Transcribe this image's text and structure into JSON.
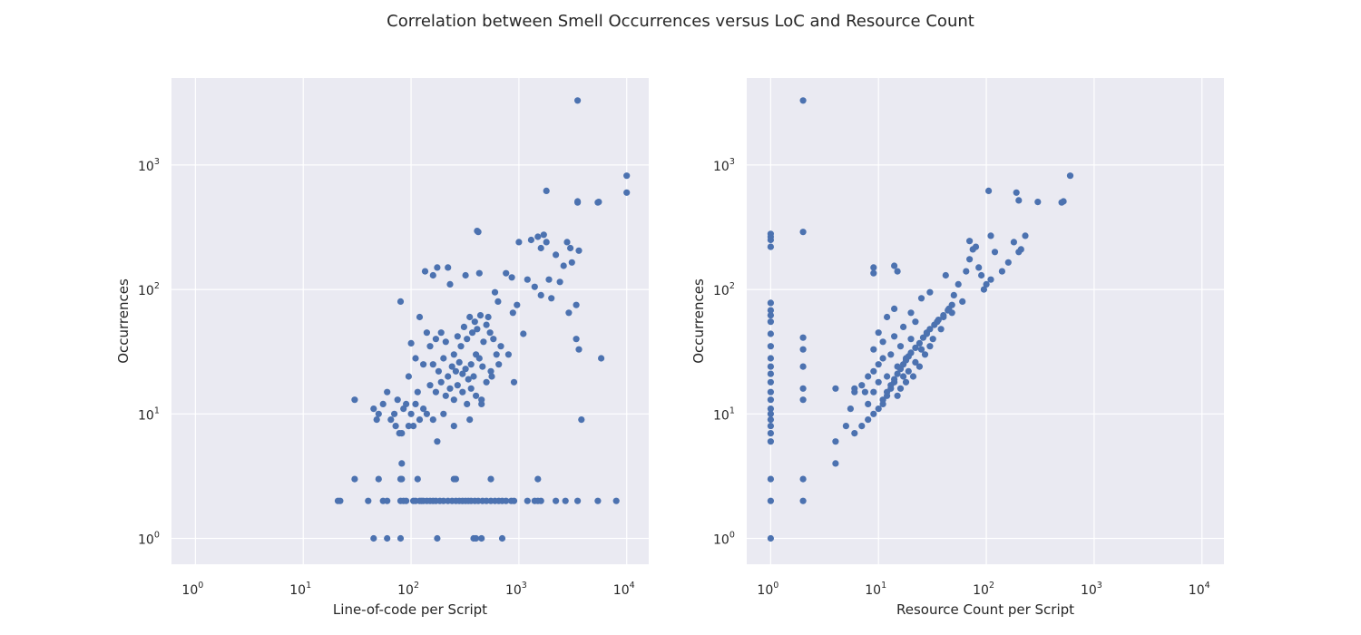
{
  "title": "Correlation between Smell Occurrences versus LoC and Resource Count",
  "colors": {
    "axes_background": "#eaeaf2",
    "grid": "#ffffff",
    "points": "#4c72b0"
  },
  "chart_data": [
    {
      "type": "scatter",
      "xlabel": "Line-of-code per Script",
      "ylabel": "Occurrences",
      "x_scale": "log",
      "y_scale": "log",
      "xlim": [
        0.6,
        16000
      ],
      "ylim": [
        0.62,
        5000
      ],
      "x_ticks": [
        {
          "value": 1,
          "base": "10",
          "exp": "0"
        },
        {
          "value": 10,
          "base": "10",
          "exp": "1"
        },
        {
          "value": 100,
          "base": "10",
          "exp": "2"
        },
        {
          "value": 1000,
          "base": "10",
          "exp": "3"
        },
        {
          "value": 10000,
          "base": "10",
          "exp": "4"
        }
      ],
      "y_ticks": [
        {
          "value": 1,
          "base": "10",
          "exp": "0"
        },
        {
          "value": 10,
          "base": "10",
          "exp": "1"
        },
        {
          "value": 100,
          "base": "10",
          "exp": "2"
        },
        {
          "value": 1000,
          "base": "10",
          "exp": "3"
        }
      ],
      "grid": true,
      "points": [
        [
          3500,
          3300
        ],
        [
          10000,
          820
        ],
        [
          10000,
          600
        ],
        [
          1800,
          620
        ],
        [
          3500,
          500
        ],
        [
          3500,
          510
        ],
        [
          5500,
          505
        ],
        [
          5400,
          500
        ],
        [
          420,
          290
        ],
        [
          410,
          295
        ],
        [
          1700,
          275
        ],
        [
          1500,
          265
        ],
        [
          1300,
          250
        ],
        [
          1800,
          240
        ],
        [
          2800,
          240
        ],
        [
          3000,
          215
        ],
        [
          3600,
          205
        ],
        [
          1000,
          240
        ],
        [
          1600,
          215
        ],
        [
          2200,
          190
        ],
        [
          2600,
          155
        ],
        [
          3100,
          165
        ],
        [
          1900,
          120
        ],
        [
          2400,
          115
        ],
        [
          135,
          140
        ],
        [
          175,
          150
        ],
        [
          220,
          150
        ],
        [
          160,
          130
        ],
        [
          230,
          110
        ],
        [
          320,
          130
        ],
        [
          430,
          135
        ],
        [
          760,
          135
        ],
        [
          860,
          125
        ],
        [
          1200,
          120
        ],
        [
          1400,
          105
        ],
        [
          1600,
          90
        ],
        [
          600,
          95
        ],
        [
          640,
          80
        ],
        [
          960,
          75
        ],
        [
          880,
          65
        ],
        [
          520,
          60
        ],
        [
          2000,
          85
        ],
        [
          2900,
          65
        ],
        [
          3400,
          75
        ],
        [
          3400,
          40
        ],
        [
          3600,
          33
        ],
        [
          5800,
          28
        ],
        [
          3800,
          9
        ],
        [
          1100,
          44
        ],
        [
          800,
          30
        ],
        [
          900,
          18
        ],
        [
          550,
          22
        ],
        [
          650,
          25
        ],
        [
          80,
          80
        ],
        [
          100,
          37
        ],
        [
          120,
          60
        ],
        [
          140,
          45
        ],
        [
          110,
          28
        ],
        [
          95,
          20
        ],
        [
          115,
          15
        ],
        [
          130,
          25
        ],
        [
          150,
          35
        ],
        [
          170,
          40
        ],
        [
          190,
          45
        ],
        [
          210,
          38
        ],
        [
          250,
          30
        ],
        [
          270,
          42
        ],
        [
          290,
          35
        ],
        [
          310,
          50
        ],
        [
          330,
          40
        ],
        [
          350,
          60
        ],
        [
          370,
          45
        ],
        [
          390,
          55
        ],
        [
          410,
          48
        ],
        [
          440,
          62
        ],
        [
          470,
          38
        ],
        [
          500,
          52
        ],
        [
          540,
          45
        ],
        [
          580,
          40
        ],
        [
          620,
          30
        ],
        [
          680,
          35
        ],
        [
          160,
          25
        ],
        [
          180,
          22
        ],
        [
          200,
          28
        ],
        [
          220,
          20
        ],
        [
          240,
          24
        ],
        [
          260,
          22
        ],
        [
          280,
          26
        ],
        [
          300,
          21
        ],
        [
          320,
          23
        ],
        [
          340,
          19
        ],
        [
          360,
          25
        ],
        [
          380,
          20
        ],
        [
          400,
          30
        ],
        [
          430,
          28
        ],
        [
          460,
          24
        ],
        [
          500,
          18
        ],
        [
          560,
          20
        ],
        [
          150,
          17
        ],
        [
          170,
          15
        ],
        [
          190,
          18
        ],
        [
          210,
          14
        ],
        [
          230,
          16
        ],
        [
          250,
          13
        ],
        [
          270,
          17
        ],
        [
          300,
          15
        ],
        [
          330,
          12
        ],
        [
          360,
          16
        ],
        [
          400,
          14
        ],
        [
          450,
          13
        ],
        [
          60,
          15
        ],
        [
          55,
          12
        ],
        [
          45,
          11
        ],
        [
          50,
          10
        ],
        [
          48,
          9
        ],
        [
          75,
          13
        ],
        [
          90,
          12
        ],
        [
          70,
          10
        ],
        [
          85,
          11
        ],
        [
          65,
          9
        ],
        [
          110,
          12
        ],
        [
          130,
          11
        ],
        [
          140,
          10
        ],
        [
          120,
          9
        ],
        [
          100,
          10
        ],
        [
          160,
          9
        ],
        [
          200,
          10
        ],
        [
          250,
          8
        ],
        [
          350,
          9
        ],
        [
          450,
          12
        ],
        [
          30,
          13
        ],
        [
          72,
          8
        ],
        [
          78,
          7
        ],
        [
          82,
          7
        ],
        [
          95,
          8
        ],
        [
          105,
          8
        ],
        [
          175,
          6
        ],
        [
          22,
          2
        ],
        [
          21,
          2
        ],
        [
          40,
          2
        ],
        [
          55,
          2
        ],
        [
          60,
          2
        ],
        [
          80,
          2
        ],
        [
          85,
          2
        ],
        [
          90,
          2
        ],
        [
          105,
          2
        ],
        [
          110,
          2
        ],
        [
          120,
          2
        ],
        [
          125,
          2
        ],
        [
          130,
          2
        ],
        [
          140,
          2
        ],
        [
          150,
          2
        ],
        [
          160,
          2
        ],
        [
          170,
          2
        ],
        [
          185,
          2
        ],
        [
          200,
          2
        ],
        [
          220,
          2
        ],
        [
          240,
          2
        ],
        [
          260,
          2
        ],
        [
          280,
          2
        ],
        [
          300,
          2
        ],
        [
          320,
          2
        ],
        [
          340,
          2
        ],
        [
          360,
          2
        ],
        [
          390,
          2
        ],
        [
          420,
          2
        ],
        [
          460,
          2
        ],
        [
          500,
          2
        ],
        [
          550,
          2
        ],
        [
          600,
          2
        ],
        [
          650,
          2
        ],
        [
          700,
          2
        ],
        [
          760,
          2
        ],
        [
          850,
          2
        ],
        [
          900,
          2
        ],
        [
          1200,
          2
        ],
        [
          1400,
          2
        ],
        [
          1500,
          2
        ],
        [
          1600,
          2
        ],
        [
          2200,
          2
        ],
        [
          2700,
          2
        ],
        [
          3500,
          2
        ],
        [
          5400,
          2
        ],
        [
          8000,
          2
        ],
        [
          30,
          3
        ],
        [
          50,
          3
        ],
        [
          80,
          3
        ],
        [
          82,
          3
        ],
        [
          115,
          3
        ],
        [
          250,
          3
        ],
        [
          260,
          3
        ],
        [
          550,
          3
        ],
        [
          1500,
          3
        ],
        [
          82,
          4
        ],
        [
          45,
          1
        ],
        [
          60,
          1
        ],
        [
          80,
          1
        ],
        [
          175,
          1
        ],
        [
          380,
          1
        ],
        [
          400,
          1
        ],
        [
          450,
          1
        ],
        [
          700,
          1
        ]
      ]
    },
    {
      "type": "scatter",
      "xlabel": "Resource Count per Script",
      "ylabel": "Occurrences",
      "x_scale": "log",
      "y_scale": "log",
      "xlim": [
        0.6,
        16000
      ],
      "ylim": [
        0.62,
        5000
      ],
      "x_ticks": [
        {
          "value": 1,
          "base": "10",
          "exp": "0"
        },
        {
          "value": 10,
          "base": "10",
          "exp": "1"
        },
        {
          "value": 100,
          "base": "10",
          "exp": "2"
        },
        {
          "value": 1000,
          "base": "10",
          "exp": "3"
        },
        {
          "value": 10000,
          "base": "10",
          "exp": "4"
        }
      ],
      "y_ticks": [
        {
          "value": 1,
          "base": "10",
          "exp": "0"
        },
        {
          "value": 10,
          "base": "10",
          "exp": "1"
        },
        {
          "value": 100,
          "base": "10",
          "exp": "2"
        },
        {
          "value": 1000,
          "base": "10",
          "exp": "3"
        }
      ],
      "grid": true,
      "points": [
        [
          1,
          1
        ],
        [
          1,
          2
        ],
        [
          1,
          3
        ],
        [
          1,
          6
        ],
        [
          1,
          7
        ],
        [
          1,
          8
        ],
        [
          1,
          9
        ],
        [
          1,
          10
        ],
        [
          1,
          11
        ],
        [
          1,
          13
        ],
        [
          1,
          15
        ],
        [
          1,
          18
        ],
        [
          1,
          21
        ],
        [
          1,
          24
        ],
        [
          1,
          28
        ],
        [
          1,
          35
        ],
        [
          1,
          44
        ],
        [
          1,
          55
        ],
        [
          1,
          62
        ],
        [
          1,
          68
        ],
        [
          1,
          78
        ],
        [
          1,
          220
        ],
        [
          1,
          250
        ],
        [
          1,
          265
        ],
        [
          1,
          280
        ],
        [
          2,
          3300
        ],
        [
          2,
          290
        ],
        [
          2,
          41
        ],
        [
          2,
          33
        ],
        [
          2,
          24
        ],
        [
          2,
          16
        ],
        [
          2,
          13
        ],
        [
          2,
          3
        ],
        [
          2,
          2
        ],
        [
          4,
          4
        ],
        [
          4,
          6
        ],
        [
          4,
          16
        ],
        [
          5,
          8
        ],
        [
          5.5,
          11
        ],
        [
          6,
          15
        ],
        [
          6,
          16
        ],
        [
          6,
          7
        ],
        [
          7,
          8
        ],
        [
          7,
          17
        ],
        [
          7.5,
          15
        ],
        [
          8,
          20
        ],
        [
          8,
          12
        ],
        [
          8,
          9
        ],
        [
          9,
          10
        ],
        [
          9,
          150
        ],
        [
          9,
          135
        ],
        [
          14,
          155
        ],
        [
          15,
          140
        ],
        [
          9,
          15
        ],
        [
          9,
          22
        ],
        [
          9,
          33
        ],
        [
          10,
          18
        ],
        [
          10,
          25
        ],
        [
          10,
          45
        ],
        [
          11,
          12
        ],
        [
          11,
          28
        ],
        [
          11,
          38
        ],
        [
          12,
          14
        ],
        [
          12,
          20
        ],
        [
          12,
          60
        ],
        [
          13,
          16
        ],
        [
          13,
          30
        ],
        [
          14,
          18
        ],
        [
          14,
          42
        ],
        [
          14,
          70
        ],
        [
          15,
          14
        ],
        [
          15,
          24
        ],
        [
          16,
          16
        ],
        [
          16,
          35
        ],
        [
          17,
          20
        ],
        [
          17,
          50
        ],
        [
          18,
          18
        ],
        [
          18,
          28
        ],
        [
          19,
          22
        ],
        [
          20,
          40
        ],
        [
          20,
          65
        ],
        [
          21,
          20
        ],
        [
          22,
          26
        ],
        [
          22,
          55
        ],
        [
          24,
          24
        ],
        [
          25,
          33
        ],
        [
          25,
          85
        ],
        [
          27,
          30
        ],
        [
          28,
          45
        ],
        [
          30,
          35
        ],
        [
          30,
          95
        ],
        [
          32,
          40
        ],
        [
          35,
          55
        ],
        [
          38,
          48
        ],
        [
          40,
          60
        ],
        [
          42,
          130
        ],
        [
          45,
          70
        ],
        [
          48,
          65
        ],
        [
          50,
          90
        ],
        [
          55,
          110
        ],
        [
          60,
          80
        ],
        [
          65,
          140
        ],
        [
          70,
          175
        ],
        [
          70,
          245
        ],
        [
          75,
          210
        ],
        [
          80,
          220
        ],
        [
          85,
          150
        ],
        [
          90,
          130
        ],
        [
          95,
          100
        ],
        [
          100,
          110
        ],
        [
          110,
          120
        ],
        [
          110,
          270
        ],
        [
          120,
          200
        ],
        [
          140,
          140
        ],
        [
          160,
          165
        ],
        [
          180,
          240
        ],
        [
          190,
          600
        ],
        [
          200,
          520
        ],
        [
          200,
          200
        ],
        [
          210,
          210
        ],
        [
          230,
          270
        ],
        [
          300,
          505
        ],
        [
          500,
          500
        ],
        [
          520,
          510
        ],
        [
          600,
          820
        ],
        [
          105,
          620
        ],
        [
          10,
          11
        ],
        [
          11,
          13
        ],
        [
          12,
          15
        ],
        [
          13,
          17
        ],
        [
          14,
          19
        ],
        [
          15,
          21
        ],
        [
          16,
          23
        ],
        [
          17,
          25
        ],
        [
          18,
          27
        ],
        [
          19,
          29
        ],
        [
          20,
          31
        ],
        [
          22,
          34
        ],
        [
          24,
          37
        ],
        [
          26,
          41
        ],
        [
          28,
          44
        ],
        [
          30,
          48
        ],
        [
          33,
          52
        ],
        [
          36,
          57
        ],
        [
          40,
          62
        ],
        [
          44,
          68
        ],
        [
          48,
          75
        ]
      ]
    }
  ]
}
